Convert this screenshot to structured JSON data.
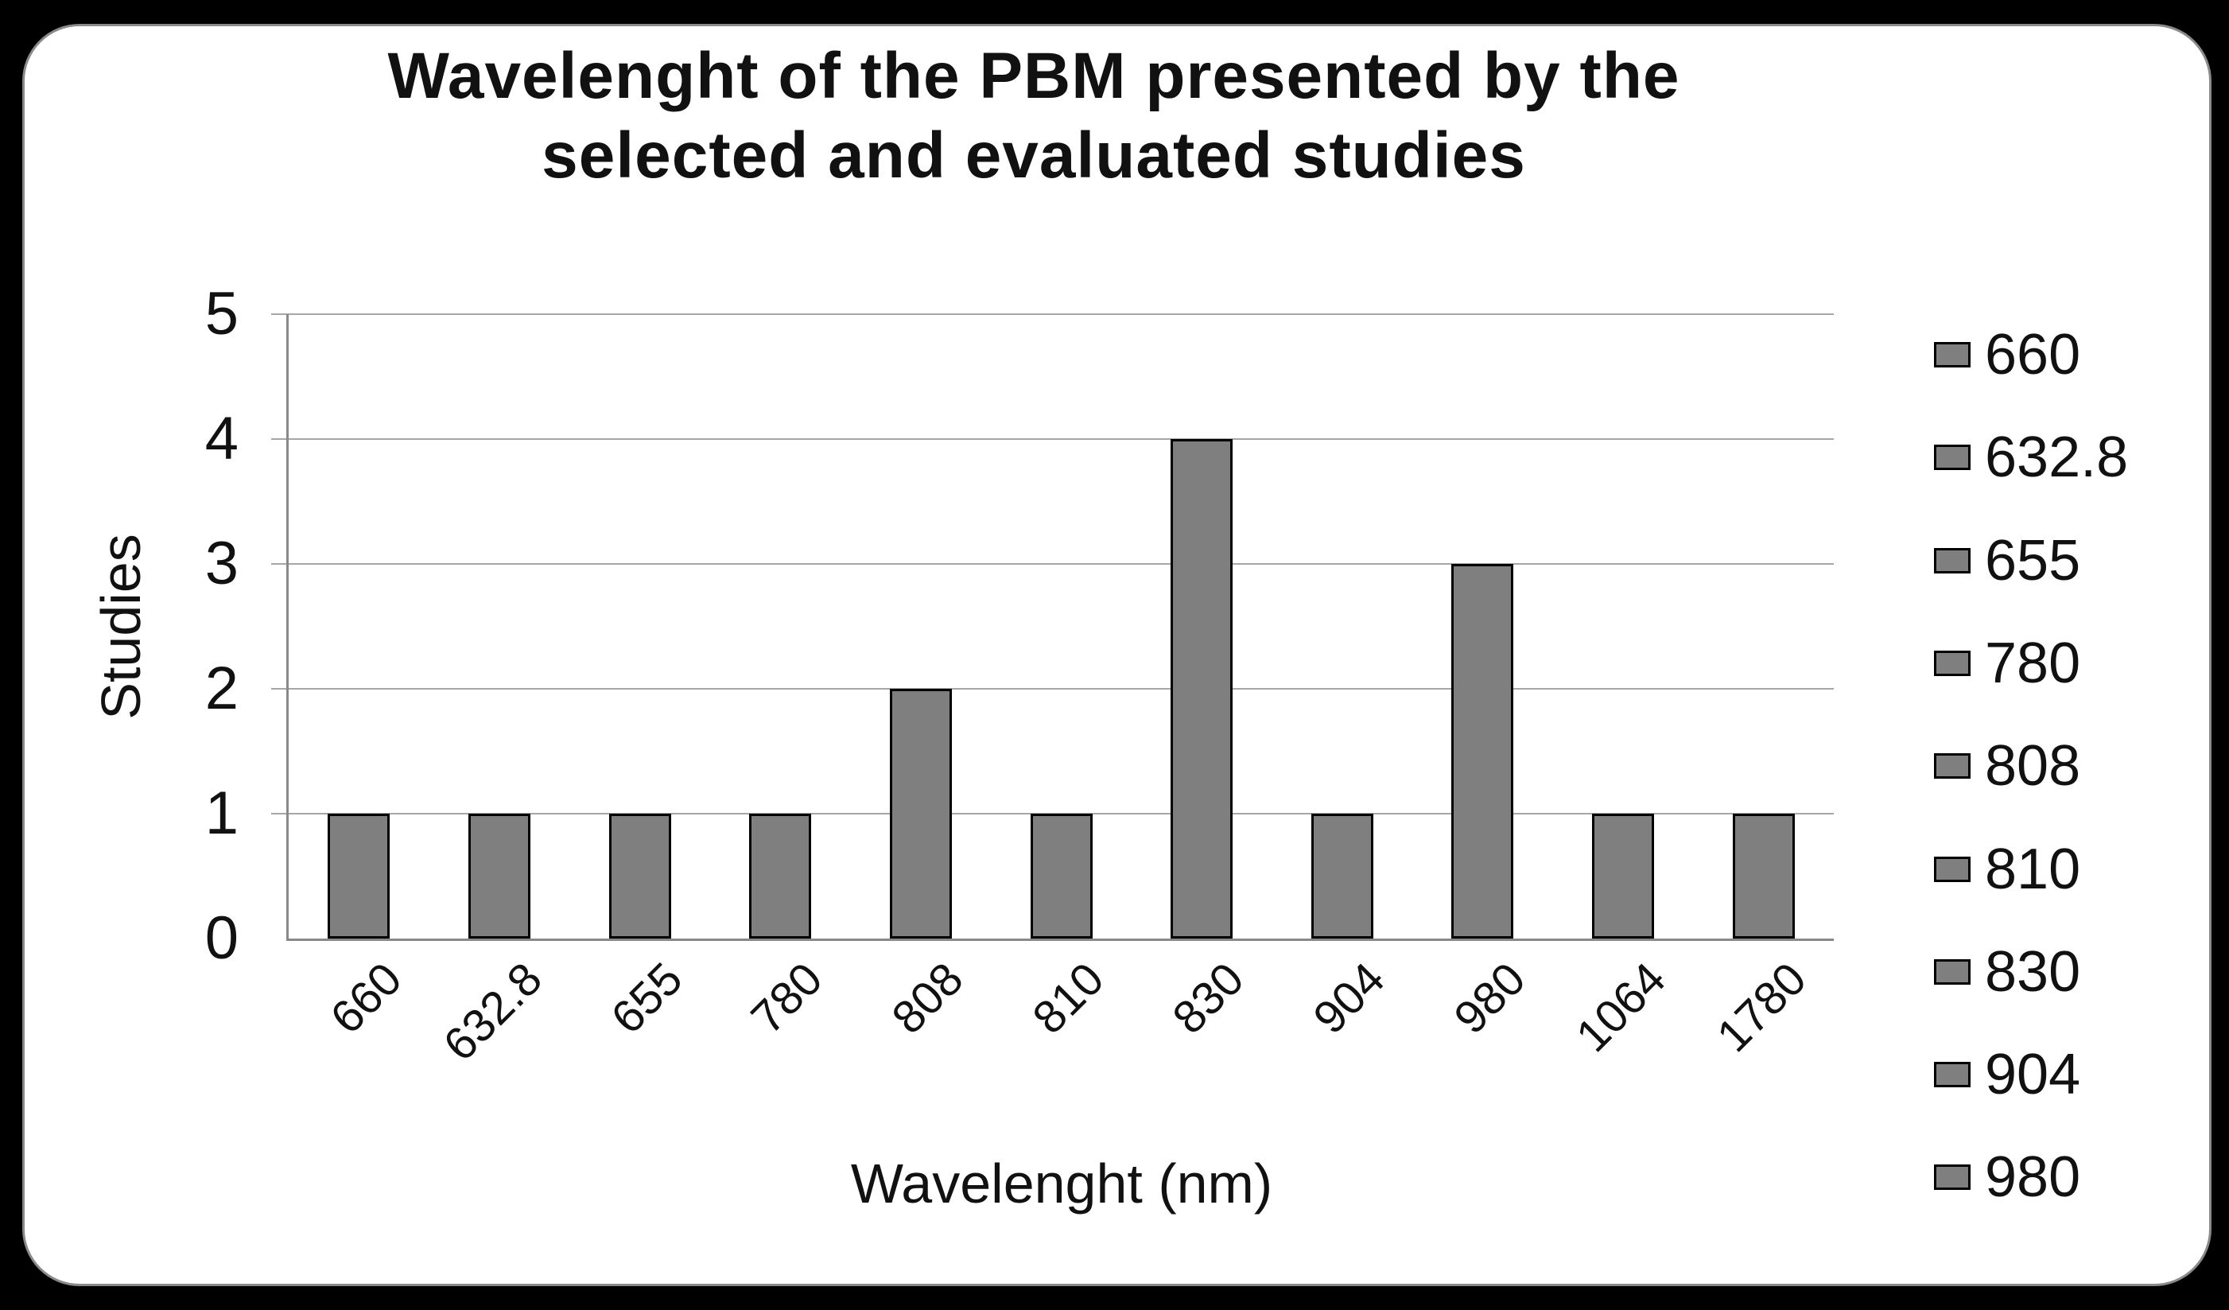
{
  "chart_data": {
    "type": "bar",
    "title": "Wavelenght of the PBM presented by the selected and evaluated studies",
    "title_lines": [
      "Wavelenght of the PBM presented by the",
      "selected and evaluated studies"
    ],
    "categories": [
      "660",
      "632.8",
      "655",
      "780",
      "808",
      "810",
      "830",
      "904",
      "980",
      "1064",
      "1780"
    ],
    "values": [
      1,
      1,
      1,
      1,
      2,
      1,
      4,
      1,
      3,
      1,
      1
    ],
    "xlabel": "Wavelenght (nm)",
    "ylabel": "Studies",
    "ylim": [
      0,
      5
    ],
    "yticks": [
      0,
      1,
      2,
      3,
      4,
      5
    ],
    "grid": true,
    "legend_position": "right",
    "legend_entries": [
      "660",
      "632.8",
      "655",
      "780",
      "808",
      "810",
      "830",
      "904",
      "980"
    ],
    "bar_color": "#7f7f7f",
    "bar_border_color": "#000000",
    "gridline_color": "#a6a6a6",
    "axis_color": "#898989",
    "background_color": "#ffffff",
    "frame_color": "#000000"
  }
}
